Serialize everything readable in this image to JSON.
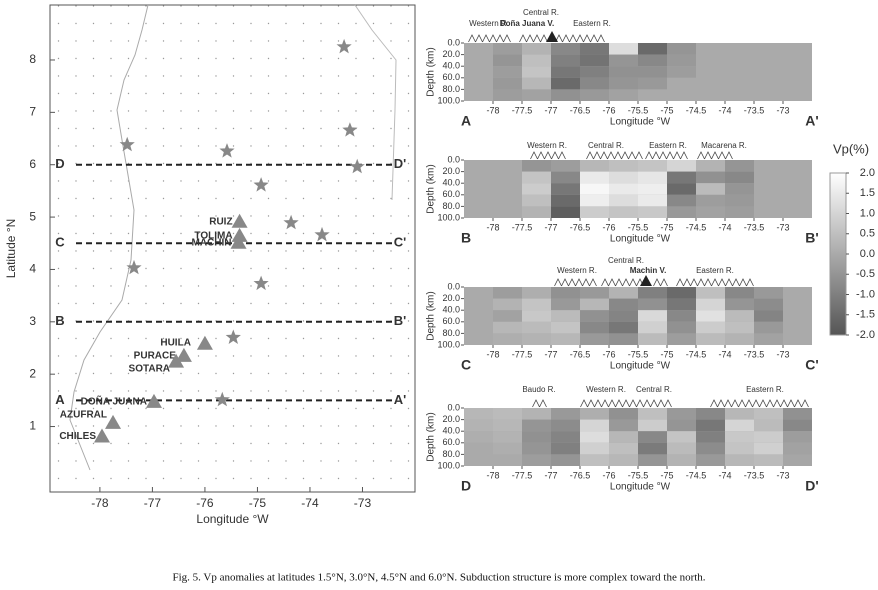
{
  "map": {
    "x_label": "Longitude °W",
    "y_label": "Latitude °N",
    "xlim": [
      -78.95,
      -72
    ],
    "ylim": [
      -0.25,
      9.05
    ],
    "xticks": [
      -78,
      -77,
      -76,
      -75,
      -74,
      -73
    ],
    "yticks": [
      1,
      2,
      3,
      4,
      5,
      6,
      7,
      8
    ],
    "stars": {
      "lon": [
        -73.35,
        -73.24,
        -77.48,
        -75.58,
        -73.1,
        -74.93,
        -74.36,
        -73.77,
        -77.35,
        -74.93,
        -75.46,
        -75.67
      ],
      "lat": [
        8.25,
        6.66,
        6.38,
        6.26,
        5.96,
        5.61,
        4.89,
        4.66,
        4.03,
        3.73,
        2.7,
        1.51
      ]
    },
    "volcanoes": [
      {
        "name": "RUIZ",
        "lon": -75.34,
        "lat": 4.91
      },
      {
        "name": "TOLIMA",
        "lon": -75.34,
        "lat": 4.64
      },
      {
        "name": "MACHIN",
        "lon": -75.36,
        "lat": 4.51
      },
      {
        "name": "HUILA",
        "lon": -76.0,
        "lat": 2.58
      },
      {
        "name": "PURACE",
        "lon": -76.4,
        "lat": 2.35
      },
      {
        "name": "SOTARA",
        "lon": -76.55,
        "lat": 2.24
      },
      {
        "name": "DOÑA JUANA",
        "lon": -76.97,
        "lat": 1.47
      },
      {
        "name": "AZUFRAL",
        "lon": -77.75,
        "lat": 1.07
      },
      {
        "name": "CHILES",
        "lon": -77.96,
        "lat": 0.81
      }
    ],
    "profiles": [
      {
        "start_label": "D",
        "end_label": "D'",
        "lat": 6.0
      },
      {
        "start_label": "C",
        "end_label": "C'",
        "lat": 4.5
      },
      {
        "start_label": "B",
        "end_label": "B'",
        "lat": 3.0
      },
      {
        "start_label": "A",
        "end_label": "A'",
        "lat": 1.5
      }
    ]
  },
  "colorbar": {
    "title": "Vp(%)",
    "lim": [
      -2,
      2
    ],
    "color_low": "#555555",
    "color_high": "#ffffff",
    "ticks": [
      {
        "value": 2,
        "label": "2.0"
      },
      {
        "value": 1.5,
        "label": "1.5"
      },
      {
        "value": 1,
        "label": "1.0"
      },
      {
        "value": 0.5,
        "label": "0.5"
      },
      {
        "value": 0,
        "label": "0.0"
      },
      {
        "value": -0.5,
        "label": "-0.5"
      },
      {
        "value": -1,
        "label": "-1.0"
      },
      {
        "value": -1.5,
        "label": "-1.5"
      },
      {
        "value": -2,
        "label": "-2.0"
      }
    ]
  },
  "sections": [
    {
      "start_label": "A",
      "end_label": "A'",
      "x_label": "Longitude °W",
      "y_label": "Depth (km)",
      "xlim": [
        -78.5,
        -72.5
      ],
      "xticks": [
        -78,
        -77.5,
        -77,
        -76.5,
        -76,
        -75.5,
        -75,
        -74.5,
        -74,
        -73.5,
        -73
      ],
      "ylim": [
        0,
        100
      ],
      "yticks": [
        {
          "value": 0,
          "label": "0.0"
        },
        {
          "value": 20,
          "label": "20.0"
        },
        {
          "value": 40,
          "label": "40.0"
        },
        {
          "value": 60,
          "label": "60.0"
        },
        {
          "value": 80,
          "label": "80.0"
        },
        {
          "value": 100,
          "label": "100.0"
        }
      ],
      "labels": [
        "Western R.",
        "Central R.",
        "Doña Juana V.",
        "Eastern R."
      ],
      "lon_bins": [
        -78.5,
        -78,
        -77.5,
        -77,
        -76.5,
        -76,
        -75.5,
        -75,
        -74.5,
        -74,
        -73.5,
        -73,
        -72.5
      ],
      "depth_bins": [
        0,
        20,
        40,
        60,
        80,
        100
      ],
      "values": [
        [
          0,
          -0.3,
          0.2,
          -0.8,
          -1.2,
          1.2,
          -1.5,
          -0.5,
          0,
          0,
          0,
          0
        ],
        [
          0,
          -0.5,
          0.5,
          -1.0,
          -1.3,
          -0.5,
          -0.8,
          -0.4,
          0,
          0,
          0,
          0
        ],
        [
          0,
          -0.3,
          0.6,
          -1.2,
          -1.0,
          -0.6,
          -0.6,
          -0.3,
          0,
          0,
          0,
          0
        ],
        [
          0,
          -0.4,
          0.3,
          -1.5,
          -0.8,
          -0.5,
          -0.4,
          0,
          0,
          0,
          0,
          0
        ],
        [
          0,
          -0.3,
          -0.2,
          -0.6,
          -0.4,
          -0.2,
          0,
          0,
          0,
          0,
          0,
          0
        ]
      ]
    },
    {
      "start_label": "B",
      "end_label": "B'",
      "x_label": "Longitude °W",
      "y_label": "Depth (km)",
      "xlim": [
        -78.5,
        -72.5
      ],
      "xticks": [
        -78,
        -77.5,
        -77,
        -76.5,
        -76,
        -75.5,
        -75,
        -74.5,
        -74,
        -73.5,
        -73
      ],
      "ylim": [
        0,
        100
      ],
      "yticks": [
        {
          "value": 0,
          "label": "0.0"
        },
        {
          "value": 20,
          "label": "20.0"
        },
        {
          "value": 40,
          "label": "40.0"
        },
        {
          "value": 60,
          "label": "60.0"
        },
        {
          "value": 80,
          "label": "80.0"
        },
        {
          "value": 100,
          "label": "100.0"
        }
      ],
      "labels": [
        "Western R.",
        "Central R.",
        "Eastern R.",
        "Macarena R."
      ],
      "lon_bins": [
        -78.5,
        -78,
        -77.5,
        -77,
        -76.5,
        -76,
        -75.5,
        -75,
        -74.5,
        -74,
        -73.5,
        -73,
        -72.5
      ],
      "depth_bins": [
        0,
        20,
        40,
        60,
        80,
        100
      ],
      "values": [
        [
          0,
          0,
          -0.5,
          -0.3,
          0.3,
          0.5,
          0.6,
          1.0,
          0.2,
          -0.5,
          0,
          0
        ],
        [
          0,
          0,
          0.6,
          -0.8,
          1.5,
          1.2,
          1.4,
          -1.2,
          -0.6,
          -0.8,
          0,
          0
        ],
        [
          0,
          0,
          0.8,
          -1.2,
          1.8,
          1.5,
          1.6,
          -1.5,
          0.4,
          -0.5,
          0,
          0
        ],
        [
          0,
          0,
          0.5,
          -1.5,
          1.6,
          1.2,
          1.5,
          -0.8,
          -0.3,
          -0.4,
          0,
          0
        ],
        [
          0,
          0,
          0.2,
          -1.8,
          0.8,
          0.6,
          0.7,
          -0.4,
          -0.2,
          -0.3,
          0,
          0
        ]
      ]
    },
    {
      "start_label": "C",
      "end_label": "C'",
      "x_label": "Longitude °W",
      "y_label": "Depth (km)",
      "xlim": [
        -78.5,
        -72.5
      ],
      "xticks": [
        -78,
        -77.5,
        -77,
        -76.5,
        -76,
        -75.5,
        -75,
        -74.5,
        -74,
        -73.5,
        -73
      ],
      "ylim": [
        0,
        100
      ],
      "yticks": [
        {
          "value": 0,
          "label": "0.0"
        },
        {
          "value": 20,
          "label": "20.0"
        },
        {
          "value": 40,
          "label": "40.0"
        },
        {
          "value": 60,
          "label": "60.0"
        },
        {
          "value": 80,
          "label": "80.0"
        },
        {
          "value": 100,
          "label": "100.0"
        }
      ],
      "labels": [
        "Central R.",
        "Machin V.",
        "Western R.",
        "Eastern R."
      ],
      "lon_bins": [
        -78.5,
        -78,
        -77.5,
        -77,
        -76.5,
        -76,
        -75.5,
        -75,
        -74.5,
        -74,
        -73.5,
        -73,
        -72.5
      ],
      "depth_bins": [
        0,
        20,
        40,
        60,
        80,
        100
      ],
      "values": [
        [
          0,
          -0.3,
          0.1,
          -0.6,
          -0.4,
          0.2,
          -1.0,
          -1.5,
          0.5,
          -0.8,
          -0.4,
          0
        ],
        [
          0,
          0.2,
          0.6,
          -0.4,
          0.3,
          -0.8,
          -0.6,
          -1.2,
          1.0,
          -0.5,
          -0.7,
          0
        ],
        [
          0,
          -0.2,
          0.7,
          0.4,
          -0.6,
          -0.9,
          1.1,
          -0.8,
          1.3,
          0.4,
          -0.9,
          0
        ],
        [
          0,
          0.3,
          0.4,
          0.6,
          -0.8,
          -1.2,
          0.9,
          -0.6,
          0.8,
          0.5,
          -0.4,
          0
        ],
        [
          0,
          0.1,
          0.2,
          0.3,
          -0.4,
          -0.6,
          0.4,
          -0.3,
          0.4,
          0.2,
          -0.2,
          0
        ]
      ]
    },
    {
      "start_label": "D",
      "end_label": "D'",
      "x_label": "Longitude °W",
      "y_label": "Depth (km)",
      "xlim": [
        -78.5,
        -72.5
      ],
      "xticks": [
        -78,
        -77.5,
        -77,
        -76.5,
        -76,
        -75.5,
        -75,
        -74.5,
        -74,
        -73.5,
        -73
      ],
      "ylim": [
        0,
        100
      ],
      "yticks": [
        {
          "value": 0,
          "label": "0.0"
        },
        {
          "value": 20,
          "label": "20.0"
        },
        {
          "value": 40,
          "label": "40.0"
        },
        {
          "value": 60,
          "label": "60.0"
        },
        {
          "value": 80,
          "label": "80.0"
        },
        {
          "value": 100,
          "label": "100.0"
        }
      ],
      "labels": [
        "Baudo R.",
        "Western R.",
        "Central R.",
        "Eastern R."
      ],
      "lon_bins": [
        -78.5,
        -78,
        -77.5,
        -77,
        -76.5,
        -76,
        -75.5,
        -75,
        -74.5,
        -74,
        -73.5,
        -73,
        -72.5
      ],
      "depth_bins": [
        0,
        20,
        40,
        60,
        80,
        100
      ],
      "values": [
        [
          0.3,
          0.4,
          0.2,
          -0.4,
          0.1,
          -0.6,
          0.5,
          -0.4,
          -0.8,
          0.3,
          0.5,
          -0.6
        ],
        [
          0.2,
          0.3,
          -0.5,
          -0.7,
          1.0,
          -0.4,
          0.8,
          -0.5,
          -1.2,
          1.0,
          0.4,
          -0.8
        ],
        [
          0.1,
          0.2,
          -0.6,
          -0.9,
          1.2,
          0.3,
          -0.8,
          0.6,
          -1.0,
          0.7,
          0.8,
          -0.3
        ],
        [
          0,
          0.1,
          -0.5,
          -1.0,
          0.9,
          0.5,
          -1.1,
          0.4,
          -0.7,
          0.6,
          0.9,
          -0.2
        ],
        [
          0,
          0,
          -0.3,
          -0.5,
          0.5,
          0.3,
          -0.5,
          0.2,
          -0.4,
          0.3,
          0.4,
          -0.1
        ]
      ]
    }
  ],
  "caption": "Fig. 5. Vp anomalies at latitudes 1.5°N, 3.0°N, 4.5°N and 6.0°N. Subduction structure is more complex toward the north."
}
